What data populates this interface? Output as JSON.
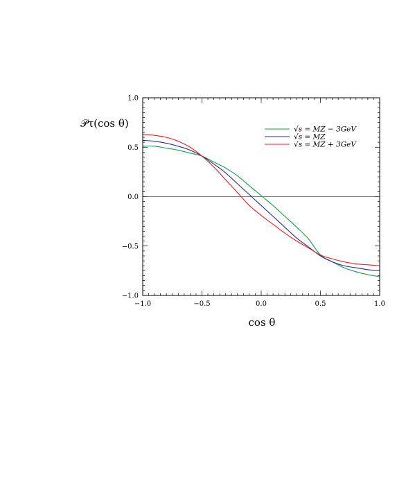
{
  "chart_data": {
    "type": "line",
    "title": "",
    "xlabel": "cos θ",
    "ylabel": "𝒫τ(cos θ)",
    "xlim": [
      -1.0,
      1.0
    ],
    "ylim": [
      -1.0,
      1.0
    ],
    "xticks": [
      -1.0,
      -0.5,
      0.0,
      0.5,
      1.0
    ],
    "yticks": [
      -1.0,
      -0.5,
      0.0,
      0.5,
      1.0
    ],
    "xtick_labels": [
      "−1.0",
      "−0.5",
      "0.0",
      "0.5",
      "1.0"
    ],
    "ytick_labels": [
      "−1.0",
      "−0.5",
      "0.0",
      "0.5",
      "1.0"
    ],
    "zero_line": true,
    "grid": false,
    "legend_position": "top-right",
    "series": [
      {
        "name": "√s = MZ − 3GeV",
        "color": "#1a9e4a",
        "x": [
          -1.0,
          -0.9,
          -0.8,
          -0.7,
          -0.6,
          -0.5,
          -0.4,
          -0.3,
          -0.2,
          -0.1,
          0.0,
          0.1,
          0.2,
          0.3,
          0.4,
          0.5,
          0.6,
          0.7,
          0.8,
          0.9,
          1.0
        ],
        "y": [
          0.51,
          0.51,
          0.49,
          0.47,
          0.44,
          0.41,
          0.35,
          0.29,
          0.21,
          0.11,
          0.01,
          -0.09,
          -0.2,
          -0.31,
          -0.43,
          -0.59,
          -0.66,
          -0.72,
          -0.76,
          -0.79,
          -0.81
        ]
      },
      {
        "name": "√s = MZ",
        "color": "#2b2a8f",
        "x": [
          -1.0,
          -0.9,
          -0.8,
          -0.7,
          -0.6,
          -0.5,
          -0.4,
          -0.3,
          -0.2,
          -0.1,
          0.0,
          0.1,
          0.2,
          0.3,
          0.4,
          0.5,
          0.6,
          0.7,
          0.8,
          0.9,
          1.0
        ],
        "y": [
          0.57,
          0.56,
          0.54,
          0.51,
          0.47,
          0.41,
          0.33,
          0.24,
          0.13,
          0.02,
          -0.09,
          -0.2,
          -0.31,
          -0.42,
          -0.51,
          -0.6,
          -0.66,
          -0.7,
          -0.72,
          -0.74,
          -0.75
        ]
      },
      {
        "name": "√s = MZ + 3GeV",
        "color": "#e0242a",
        "x": [
          -1.0,
          -0.9,
          -0.8,
          -0.7,
          -0.6,
          -0.5,
          -0.4,
          -0.3,
          -0.2,
          -0.1,
          0.0,
          0.1,
          0.2,
          0.3,
          0.4,
          0.5,
          0.6,
          0.7,
          0.8,
          0.9,
          1.0
        ],
        "y": [
          0.63,
          0.62,
          0.6,
          0.56,
          0.5,
          0.41,
          0.3,
          0.17,
          0.04,
          -0.09,
          -0.19,
          -0.28,
          -0.37,
          -0.45,
          -0.52,
          -0.59,
          -0.63,
          -0.66,
          -0.68,
          -0.69,
          -0.7
        ]
      }
    ]
  }
}
